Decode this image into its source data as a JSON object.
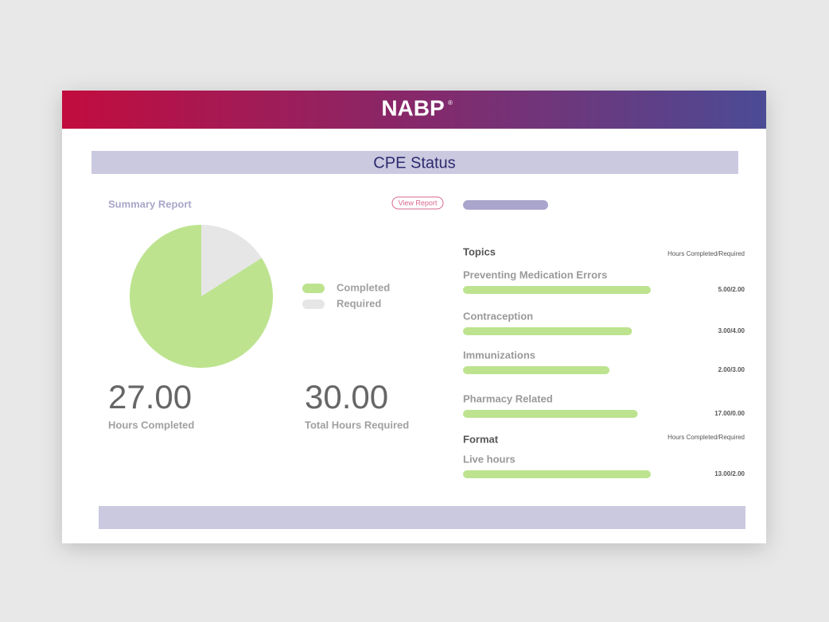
{
  "header": {
    "logo": "NABP",
    "logo_mark": "®"
  },
  "title": "CPE Status",
  "summary": {
    "label": "Summary Report",
    "button": "View Report"
  },
  "chart_data": {
    "type": "pie",
    "categories": [
      "Completed",
      "Required"
    ],
    "values": [
      84,
      16
    ],
    "colors": [
      "#bde38f",
      "#e6e6e6"
    ]
  },
  "totals": [
    {
      "value": "27.00",
      "label": "Hours Completed"
    },
    {
      "value": "30.00",
      "label": "Total Hours Required"
    }
  ],
  "bar_color": "#bde38f",
  "topics": {
    "heading": "Topics",
    "column": "Hours Completed/Required",
    "items": [
      {
        "name": "Preventing Medication Errors",
        "hours": "5.00/2.00",
        "progress": 100
      },
      {
        "name": "Contraception",
        "hours": "3.00/4.00",
        "progress": 90
      },
      {
        "name": "Immunizations",
        "hours": "2.00/3.00",
        "progress": 78
      },
      {
        "name": "Pharmacy Related",
        "hours": "17.00/0.00",
        "progress": 93
      }
    ]
  },
  "format": {
    "heading": "Format",
    "column": "Hours Completed/Required",
    "items": [
      {
        "name": "Live hours",
        "hours": "13.00/2.00",
        "progress": 100
      }
    ]
  }
}
